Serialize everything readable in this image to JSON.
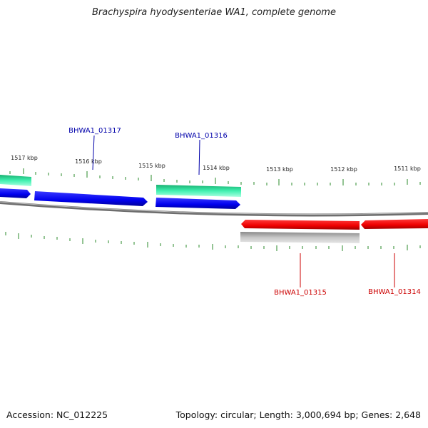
{
  "header": {
    "title": "Brachyspira hyodysenteriae WA1, complete genome"
  },
  "footer": {
    "accession": "Accession: NC_012225",
    "summary": "Topology: circular; Length: 3,000,694 bp; Genes: 2,648"
  },
  "colors": {
    "forward_cds": "#0000ee",
    "reverse_cds": "#ee0000",
    "forward_gene": "#22dd99",
    "reverse_gene": "#bbbbbb",
    "tick": "#2a8a2a",
    "backbone": "#777777"
  },
  "ticks": [
    {
      "label": "1517 kbp"
    },
    {
      "label": "1516 kbp"
    },
    {
      "label": "1515 kbp"
    },
    {
      "label": "1514 kbp"
    },
    {
      "label": "1513 kbp"
    },
    {
      "label": "1512 kbp"
    },
    {
      "label": "1511 kbp"
    }
  ],
  "genes": [
    {
      "name": "BHWA1_01317",
      "color": "#0000aa"
    },
    {
      "name": "BHWA1_01316",
      "color": "#0000aa"
    },
    {
      "name": "BHWA1_01315",
      "color": "#cc0000"
    },
    {
      "name": "BHWA1_01314",
      "color": "#cc0000"
    }
  ]
}
